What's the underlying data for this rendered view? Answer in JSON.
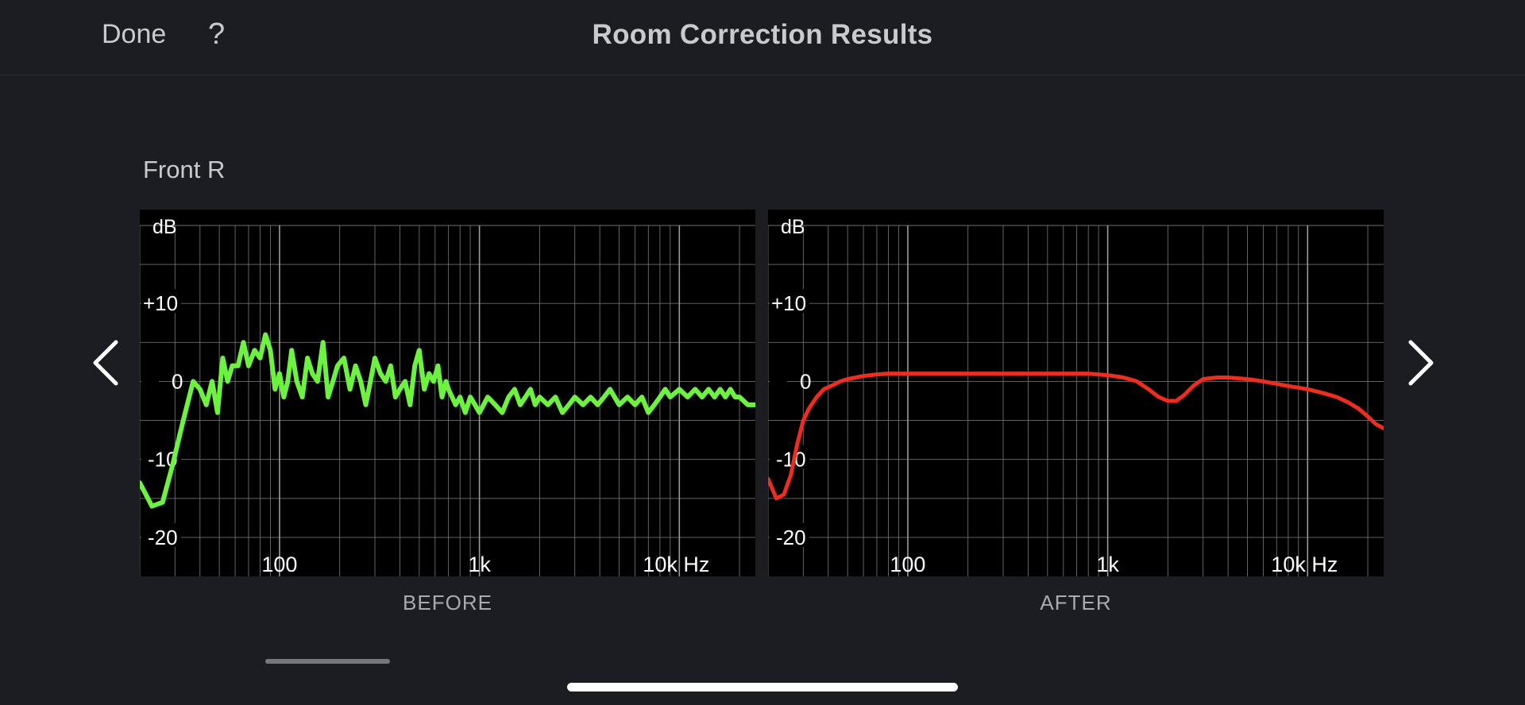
{
  "header": {
    "done_label": "Done",
    "help_label": "?",
    "title": "Room Correction Results"
  },
  "channel": {
    "name": "Front R"
  },
  "navigation": {
    "prev_icon": "chevron-left-icon",
    "next_icon": "chevron-right-icon"
  },
  "colors": {
    "background": "#1c1d22",
    "plot_background": "#000000",
    "grid": "#6e6e6e",
    "before_curve": "#6cf23f",
    "after_curve": "#ee2d1f"
  },
  "chart_data": [
    {
      "type": "line",
      "caption": "BEFORE",
      "ylabel": "dB",
      "xlabel": "Hz",
      "x_scale": "log",
      "xlim": [
        20,
        24000
      ],
      "ylim": [
        -25,
        20
      ],
      "x_ticks": [
        {
          "value": 100,
          "label": "100"
        },
        {
          "value": 1000,
          "label": "1k"
        },
        {
          "value": 10000,
          "label": "10k Hz"
        }
      ],
      "y_ticks": [
        {
          "value": 10,
          "label": "+10"
        },
        {
          "value": 0,
          "label": "0"
        },
        {
          "value": -10,
          "label": "-10"
        },
        {
          "value": -20,
          "label": "-20"
        }
      ],
      "grid": true,
      "series": [
        {
          "color": "#6cf23f",
          "x": [
            20,
            23,
            26,
            29,
            33,
            37,
            40,
            43,
            46,
            49,
            52,
            55,
            58,
            62,
            66,
            70,
            75,
            80,
            85,
            90,
            95,
            100,
            105,
            110,
            115,
            122,
            130,
            138,
            146,
            155,
            165,
            175,
            185,
            195,
            210,
            225,
            240,
            255,
            270,
            285,
            300,
            320,
            340,
            360,
            380,
            400,
            425,
            450,
            475,
            500,
            530,
            560,
            590,
            620,
            650,
            680,
            700,
            730,
            760,
            800,
            850,
            900,
            950,
            1000,
            1050,
            1100,
            1200,
            1300,
            1400,
            1500,
            1600,
            1700,
            1800,
            1900,
            2000,
            2200,
            2400,
            2600,
            2800,
            3000,
            3300,
            3600,
            3900,
            4200,
            4500,
            5000,
            5500,
            6000,
            6500,
            7000,
            7500,
            8000,
            8500,
            9000,
            10000,
            11000,
            12000,
            13000,
            14000,
            15000,
            16000,
            17000,
            18000,
            19000,
            20000,
            22000,
            24000
          ],
          "y": [
            -13,
            -16,
            -15.5,
            -11,
            -5,
            0,
            -1,
            -3,
            0,
            -4,
            3,
            0,
            2,
            2,
            5,
            2,
            4,
            3,
            6,
            4,
            -1,
            1,
            -2,
            0,
            4,
            0,
            -2,
            3,
            1,
            0,
            5,
            -2,
            0,
            2,
            3,
            -1,
            2,
            0,
            -3,
            0,
            3,
            1,
            0,
            2,
            -2,
            -1,
            0,
            -3,
            2,
            4,
            -1,
            1,
            0,
            2,
            -2,
            0,
            -1,
            -2,
            -3,
            -2,
            -4,
            -2,
            -3,
            -4,
            -3,
            -2,
            -3,
            -4,
            -2,
            -1,
            -3,
            -2,
            -1,
            -3,
            -2,
            -3,
            -2,
            -4,
            -3,
            -2,
            -3,
            -2,
            -3,
            -2,
            -1,
            -3,
            -2,
            -3,
            -2,
            -4,
            -3,
            -2,
            -1,
            -2,
            -1,
            -2,
            -1,
            -2,
            -1,
            -2,
            -1,
            -2,
            -1,
            -2,
            -2,
            -3,
            -3
          ]
        }
      ]
    },
    {
      "type": "line",
      "caption": "AFTER",
      "ylabel": "dB",
      "xlabel": "Hz",
      "x_scale": "log",
      "xlim": [
        20,
        24000
      ],
      "ylim": [
        -25,
        20
      ],
      "x_ticks": [
        {
          "value": 100,
          "label": "100"
        },
        {
          "value": 1000,
          "label": "1k"
        },
        {
          "value": 10000,
          "label": "10k Hz"
        }
      ],
      "y_ticks": [
        {
          "value": 10,
          "label": "+10"
        },
        {
          "value": 0,
          "label": "0"
        },
        {
          "value": -10,
          "label": "-10"
        },
        {
          "value": -20,
          "label": "-20"
        }
      ],
      "grid": true,
      "series": [
        {
          "color": "#ee2d1f",
          "x": [
            20,
            22,
            24,
            26,
            28,
            30,
            32,
            35,
            38,
            42,
            46,
            50,
            55,
            60,
            65,
            70,
            80,
            90,
            100,
            120,
            150,
            180,
            200,
            250,
            300,
            400,
            500,
            600,
            800,
            1000,
            1200,
            1400,
            1600,
            1800,
            2000,
            2200,
            2400,
            2700,
            3000,
            3500,
            4000,
            5000,
            6000,
            7000,
            8000,
            9000,
            10000,
            12000,
            14000,
            16000,
            18000,
            20000,
            22000,
            24000
          ],
          "y": [
            -12.5,
            -15,
            -14.5,
            -12,
            -8,
            -5,
            -3.5,
            -2,
            -1,
            -0.5,
            0,
            0.3,
            0.5,
            0.7,
            0.8,
            0.9,
            1,
            1,
            1,
            1,
            1,
            1,
            1,
            1,
            1,
            1,
            1,
            1,
            1,
            0.8,
            0.5,
            0,
            -1,
            -2,
            -2.5,
            -2.5,
            -1.8,
            -0.5,
            0.3,
            0.5,
            0.5,
            0.3,
            0,
            -0.3,
            -0.6,
            -0.8,
            -1,
            -1.5,
            -2,
            -2.7,
            -3.5,
            -4.5,
            -5.5,
            -6
          ]
        }
      ]
    }
  ]
}
